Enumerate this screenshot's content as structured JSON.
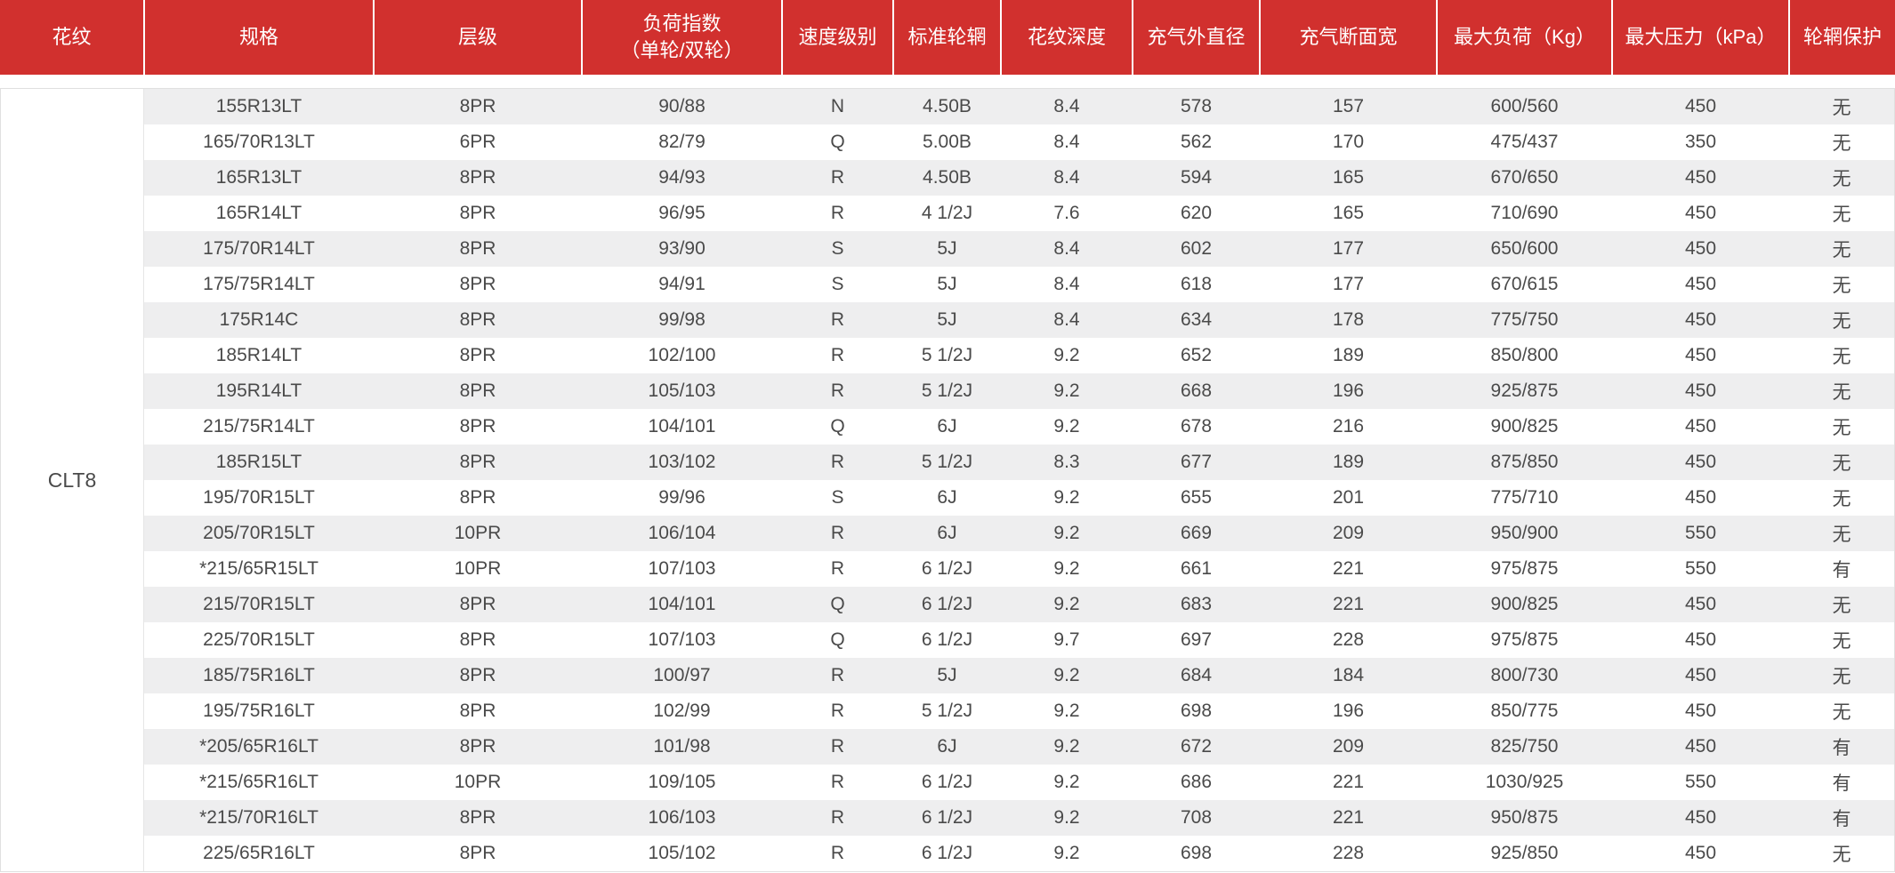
{
  "table": {
    "pattern_group": "CLT8",
    "columns": [
      {
        "label": "花纹"
      },
      {
        "label": "规格"
      },
      {
        "label": "层级"
      },
      {
        "label": "负荷指数",
        "sub": "（单轮/双轮）"
      },
      {
        "label": "速度级别"
      },
      {
        "label": "标准轮辋"
      },
      {
        "label": "花纹深度"
      },
      {
        "label": "充气外直径"
      },
      {
        "label": "充气断面宽"
      },
      {
        "label": "最大负荷（Kg）"
      },
      {
        "label": "最大压力（kPa）"
      },
      {
        "label": "轮辋保护"
      }
    ],
    "rows": [
      [
        "155R13LT",
        "8PR",
        "90/88",
        "N",
        "4.50B",
        "8.4",
        "578",
        "157",
        "600/560",
        "450",
        "无"
      ],
      [
        "165/70R13LT",
        "6PR",
        "82/79",
        "Q",
        "5.00B",
        "8.4",
        "562",
        "170",
        "475/437",
        "350",
        "无"
      ],
      [
        "165R13LT",
        "8PR",
        "94/93",
        "R",
        "4.50B",
        "8.4",
        "594",
        "165",
        "670/650",
        "450",
        "无"
      ],
      [
        "165R14LT",
        "8PR",
        "96/95",
        "R",
        "4 1/2J",
        "7.6",
        "620",
        "165",
        "710/690",
        "450",
        "无"
      ],
      [
        "175/70R14LT",
        "8PR",
        "93/90",
        "S",
        "5J",
        "8.4",
        "602",
        "177",
        "650/600",
        "450",
        "无"
      ],
      [
        "175/75R14LT",
        "8PR",
        "94/91",
        "S",
        "5J",
        "8.4",
        "618",
        "177",
        "670/615",
        "450",
        "无"
      ],
      [
        "175R14C",
        "8PR",
        "99/98",
        "R",
        "5J",
        "8.4",
        "634",
        "178",
        "775/750",
        "450",
        "无"
      ],
      [
        "185R14LT",
        "8PR",
        "102/100",
        "R",
        "5 1/2J",
        "9.2",
        "652",
        "189",
        "850/800",
        "450",
        "无"
      ],
      [
        "195R14LT",
        "8PR",
        "105/103",
        "R",
        "5 1/2J",
        "9.2",
        "668",
        "196",
        "925/875",
        "450",
        "无"
      ],
      [
        "215/75R14LT",
        "8PR",
        "104/101",
        "Q",
        "6J",
        "9.2",
        "678",
        "216",
        "900/825",
        "450",
        "无"
      ],
      [
        "185R15LT",
        "8PR",
        "103/102",
        "R",
        "5 1/2J",
        "8.3",
        "677",
        "189",
        "875/850",
        "450",
        "无"
      ],
      [
        "195/70R15LT",
        "8PR",
        "99/96",
        "S",
        "6J",
        "9.2",
        "655",
        "201",
        "775/710",
        "450",
        "无"
      ],
      [
        "205/70R15LT",
        "10PR",
        "106/104",
        "R",
        "6J",
        "9.2",
        "669",
        "209",
        "950/900",
        "550",
        "无"
      ],
      [
        "*215/65R15LT",
        "10PR",
        "107/103",
        "R",
        "6 1/2J",
        "9.2",
        "661",
        "221",
        "975/875",
        "550",
        "有"
      ],
      [
        "215/70R15LT",
        "8PR",
        "104/101",
        "Q",
        "6 1/2J",
        "9.2",
        "683",
        "221",
        "900/825",
        "450",
        "无"
      ],
      [
        "225/70R15LT",
        "8PR",
        "107/103",
        "Q",
        "6 1/2J",
        "9.7",
        "697",
        "228",
        "975/875",
        "450",
        "无"
      ],
      [
        "185/75R16LT",
        "8PR",
        "100/97",
        "R",
        "5J",
        "9.2",
        "684",
        "184",
        "800/730",
        "450",
        "无"
      ],
      [
        "195/75R16LT",
        "8PR",
        "102/99",
        "R",
        "5 1/2J",
        "9.2",
        "698",
        "196",
        "850/775",
        "450",
        "无"
      ],
      [
        "*205/65R16LT",
        "8PR",
        "101/98",
        "R",
        "6J",
        "9.2",
        "672",
        "209",
        "825/750",
        "450",
        "有"
      ],
      [
        "*215/65R16LT",
        "10PR",
        "109/105",
        "R",
        "6 1/2J",
        "9.2",
        "686",
        "221",
        "1030/925",
        "550",
        "有"
      ],
      [
        "*215/70R16LT",
        "8PR",
        "106/103",
        "R",
        "6 1/2J",
        "9.2",
        "708",
        "221",
        "950/875",
        "450",
        "有"
      ],
      [
        "225/65R16LT",
        "8PR",
        "105/102",
        "R",
        "6 1/2J",
        "9.2",
        "698",
        "228",
        "925/850",
        "450",
        "无"
      ]
    ]
  },
  "colors": {
    "header_red": "#d1302e",
    "stripe_gray": "#eeeeef"
  }
}
